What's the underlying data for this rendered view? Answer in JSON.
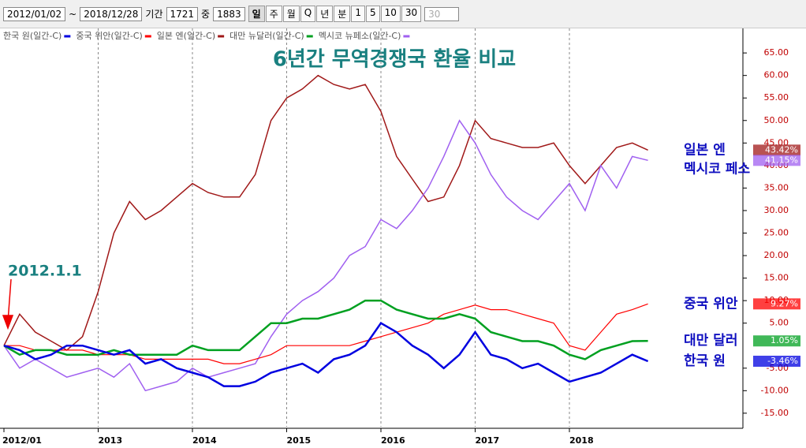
{
  "toolbar": {
    "start_date": "2012/01/02",
    "tilde": "~",
    "end_date": "2018/12/28",
    "period_label": "기간",
    "period_value": "1721",
    "mid_label": "중",
    "mid_value": "1883",
    "buttons": [
      "일",
      "주",
      "월",
      "Q",
      "년",
      "분",
      "1",
      "5",
      "10",
      "30"
    ],
    "select_value": "30"
  },
  "chart_data": {
    "type": "line",
    "title": "6년간 무역경쟁국 환율 비교",
    "annotation": "2012.1.1",
    "categories": [
      "2012/01",
      null,
      null,
      null,
      null,
      null,
      "2013",
      null,
      null,
      null,
      null,
      null,
      "2014",
      null,
      null,
      null,
      null,
      null,
      "2015",
      null,
      null,
      null,
      null,
      null,
      "2016",
      null,
      null,
      null,
      null,
      null,
      "2017",
      null,
      null,
      null,
      null,
      null,
      "2018",
      null,
      null,
      null,
      null,
      null
    ],
    "ylim": [
      -18,
      68
    ],
    "yticks": [
      {
        "value": -15,
        "label": "-15.00"
      },
      {
        "value": -10,
        "label": "-10.00"
      },
      {
        "value": -5,
        "label": "-5.00"
      },
      {
        "value": 5,
        "label": "5.00"
      },
      {
        "value": 10,
        "label": "10.00"
      },
      {
        "value": 15,
        "label": "15.00"
      },
      {
        "value": 20,
        "label": "20.00"
      },
      {
        "value": 25,
        "label": "25.00"
      },
      {
        "value": 30,
        "label": "30.00"
      },
      {
        "value": 35,
        "label": "35.00"
      },
      {
        "value": 40,
        "label": "40.00"
      },
      {
        "value": 45,
        "label": "45.00"
      },
      {
        "value": 50,
        "label": "50.00"
      },
      {
        "value": 55,
        "label": "55.00"
      },
      {
        "value": 60,
        "label": "60.00"
      },
      {
        "value": 65,
        "label": "65.00"
      }
    ],
    "series": [
      {
        "name": "한국 원(일간-C)",
        "tag": "한국 원",
        "color": "#0000e0",
        "width": 2.5,
        "values": [
          0,
          -1,
          -3,
          -2,
          0,
          0,
          -1,
          -2,
          -1,
          -4,
          -3,
          -5,
          -6,
          -7,
          -9,
          -9,
          -8,
          -6,
          -5,
          -4,
          -6,
          -3,
          -2,
          0,
          5,
          3,
          0,
          -2,
          -5,
          -2,
          3,
          -2,
          -3,
          -5,
          -4,
          -6,
          -8,
          -7,
          -6,
          -4,
          -2,
          -3.46
        ],
        "value_labels": [
          null,
          null,
          null,
          null,
          null,
          null,
          null,
          null,
          null,
          null,
          null,
          null,
          null,
          null,
          null,
          null,
          null,
          null,
          null,
          null,
          null,
          null,
          null,
          null,
          null,
          null,
          null,
          null,
          null,
          null,
          null,
          null,
          null,
          null,
          null,
          null,
          null,
          null,
          null,
          null,
          null,
          "-3.46%"
        ]
      },
      {
        "name": "중국 위안(일간-C)",
        "tag": "중국 위안",
        "color": "#ff0000",
        "width": 1.2,
        "values": [
          0,
          0,
          -1,
          -1,
          -1,
          -1,
          -2,
          -2,
          -2,
          -3,
          -3,
          -3,
          -3,
          -3,
          -4,
          -4,
          -3,
          -2,
          0,
          0,
          0,
          0,
          0,
          1,
          2,
          3,
          4,
          5,
          7,
          8,
          9,
          8,
          8,
          7,
          6,
          5,
          0,
          -1,
          3,
          7,
          8,
          9.27
        ],
        "value_labels": [
          null,
          null,
          null,
          null,
          null,
          null,
          null,
          null,
          null,
          null,
          null,
          null,
          null,
          null,
          null,
          null,
          null,
          null,
          null,
          null,
          null,
          null,
          null,
          null,
          null,
          null,
          null,
          null,
          null,
          null,
          null,
          null,
          null,
          null,
          null,
          null,
          null,
          null,
          null,
          null,
          null,
          "9.27%"
        ]
      },
      {
        "name": "일본 엔(일간-C)",
        "tag": "일본 엔",
        "color": "#a01818",
        "width": 1.5,
        "values": [
          0,
          7,
          3,
          1,
          -1,
          2,
          12,
          25,
          32,
          28,
          30,
          33,
          36,
          34,
          33,
          33,
          38,
          50,
          55,
          57,
          60,
          58,
          57,
          58,
          52,
          42,
          37,
          32,
          33,
          40,
          50,
          46,
          45,
          44,
          44,
          45,
          40,
          36,
          40,
          44,
          45,
          43.42
        ],
        "value_labels": [
          null,
          null,
          null,
          null,
          null,
          null,
          null,
          null,
          null,
          null,
          null,
          null,
          null,
          null,
          null,
          null,
          null,
          null,
          null,
          null,
          null,
          null,
          null,
          null,
          null,
          null,
          null,
          null,
          null,
          null,
          null,
          null,
          null,
          null,
          null,
          null,
          null,
          null,
          null,
          null,
          null,
          "43.42%"
        ]
      },
      {
        "name": "대만 뉴달러(일간-C)",
        "tag": "대만 달러",
        "color": "#00a020",
        "width": 2.5,
        "values": [
          0,
          -2,
          -1,
          -1,
          -2,
          -2,
          -2,
          -1,
          -2,
          -2,
          -2,
          -2,
          0,
          -1,
          -1,
          -1,
          2,
          5,
          5,
          6,
          6,
          7,
          8,
          10,
          10,
          8,
          7,
          6,
          6,
          7,
          6,
          3,
          2,
          1,
          1,
          0,
          -2,
          -3,
          -1,
          0,
          1,
          1.05
        ],
        "value_labels": [
          null,
          null,
          null,
          null,
          null,
          null,
          null,
          null,
          null,
          null,
          null,
          null,
          null,
          null,
          null,
          null,
          null,
          null,
          null,
          null,
          null,
          null,
          null,
          null,
          null,
          null,
          null,
          null,
          null,
          null,
          null,
          null,
          null,
          null,
          null,
          null,
          null,
          null,
          null,
          null,
          null,
          "1.05%"
        ]
      },
      {
        "name": "멕시코 뉴페소(일간-C)",
        "tag": "멕시코 페소",
        "color": "#a060f0",
        "width": 1.5,
        "values": [
          0,
          -5,
          -3,
          -5,
          -7,
          -6,
          -5,
          -7,
          -4,
          -10,
          -9,
          -8,
          -5,
          -7,
          -6,
          -5,
          -4,
          2,
          7,
          10,
          12,
          15,
          20,
          22,
          28,
          26,
          30,
          35,
          42,
          50,
          45,
          38,
          33,
          30,
          28,
          32,
          36,
          30,
          40,
          35,
          42,
          41.15
        ],
        "value_labels": [
          null,
          null,
          null,
          null,
          null,
          null,
          null,
          null,
          null,
          null,
          null,
          null,
          null,
          null,
          null,
          null,
          null,
          null,
          null,
          null,
          null,
          null,
          null,
          null,
          null,
          null,
          null,
          null,
          null,
          null,
          null,
          null,
          null,
          null,
          null,
          null,
          null,
          null,
          null,
          null,
          null,
          "41.15%"
        ]
      }
    ]
  }
}
